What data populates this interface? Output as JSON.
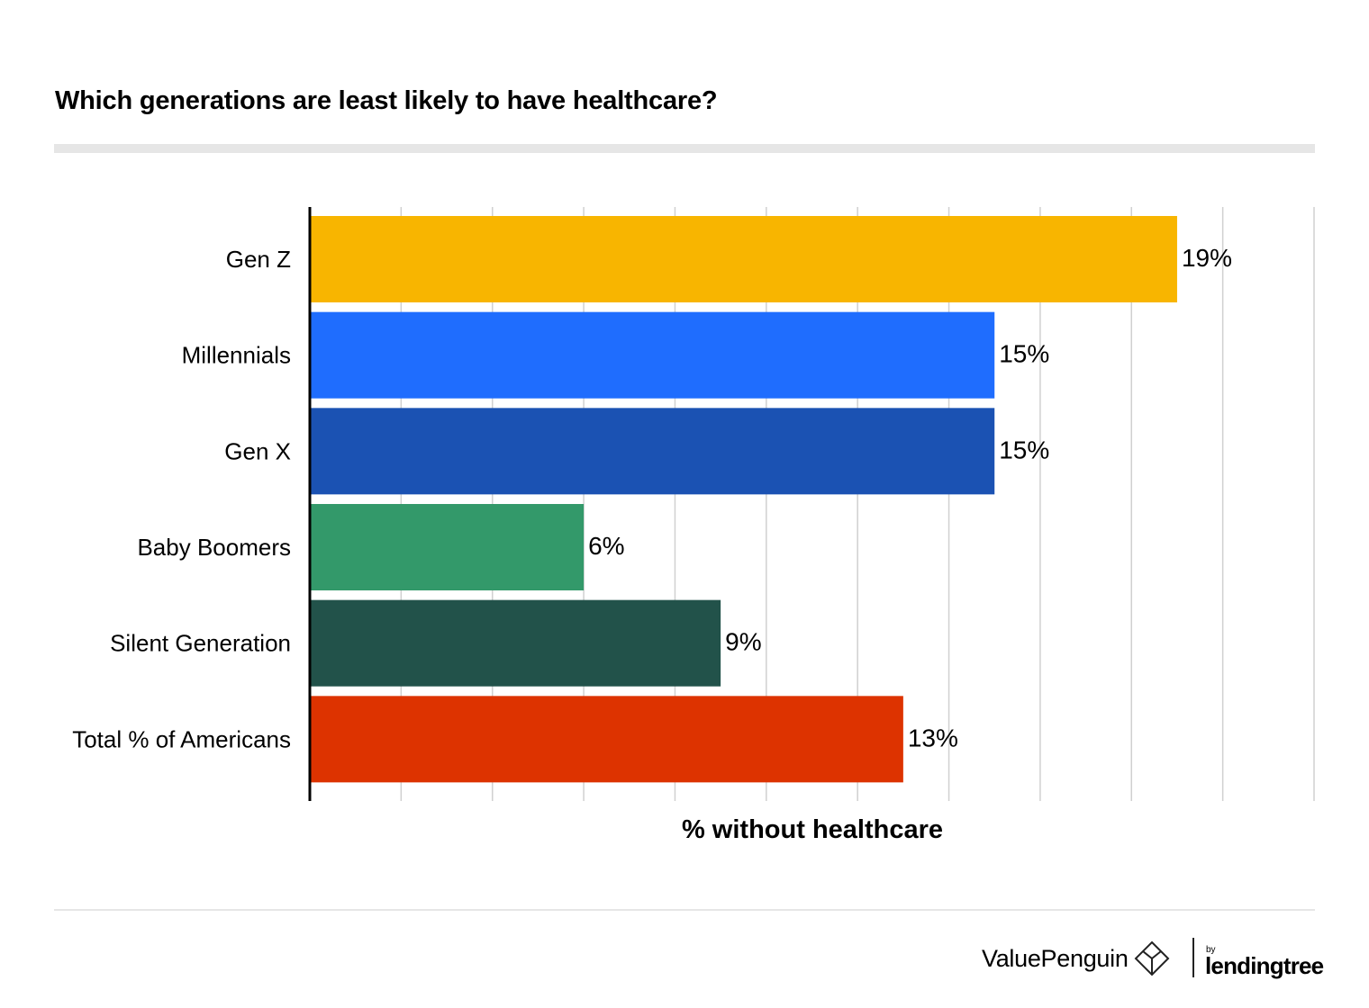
{
  "header": {
    "title": "Which generations are least likely to have healthcare?"
  },
  "chart_data": {
    "type": "bar",
    "orientation": "horizontal",
    "title": "Which generations are least likely to have healthcare?",
    "xlabel": "% without healthcare",
    "ylabel": "",
    "xlim": [
      0,
      22
    ],
    "grid": true,
    "categories": [
      "Gen Z",
      "Millennials",
      "Gen X",
      "Baby Boomers",
      "Silent Generation",
      "Total % of Americans"
    ],
    "values": [
      19,
      15,
      15,
      6,
      9,
      13
    ],
    "data_labels": [
      "19%",
      "15%",
      "15%",
      "6%",
      "9%",
      "13%"
    ],
    "colors": [
      "#f8b500",
      "#1f6dfe",
      "#1b52b3",
      "#33996a",
      "#22524a",
      "#dd3300"
    ]
  },
  "footer": {
    "brand": "ValuePenguin",
    "by": "by",
    "partner": "lendingtree"
  }
}
